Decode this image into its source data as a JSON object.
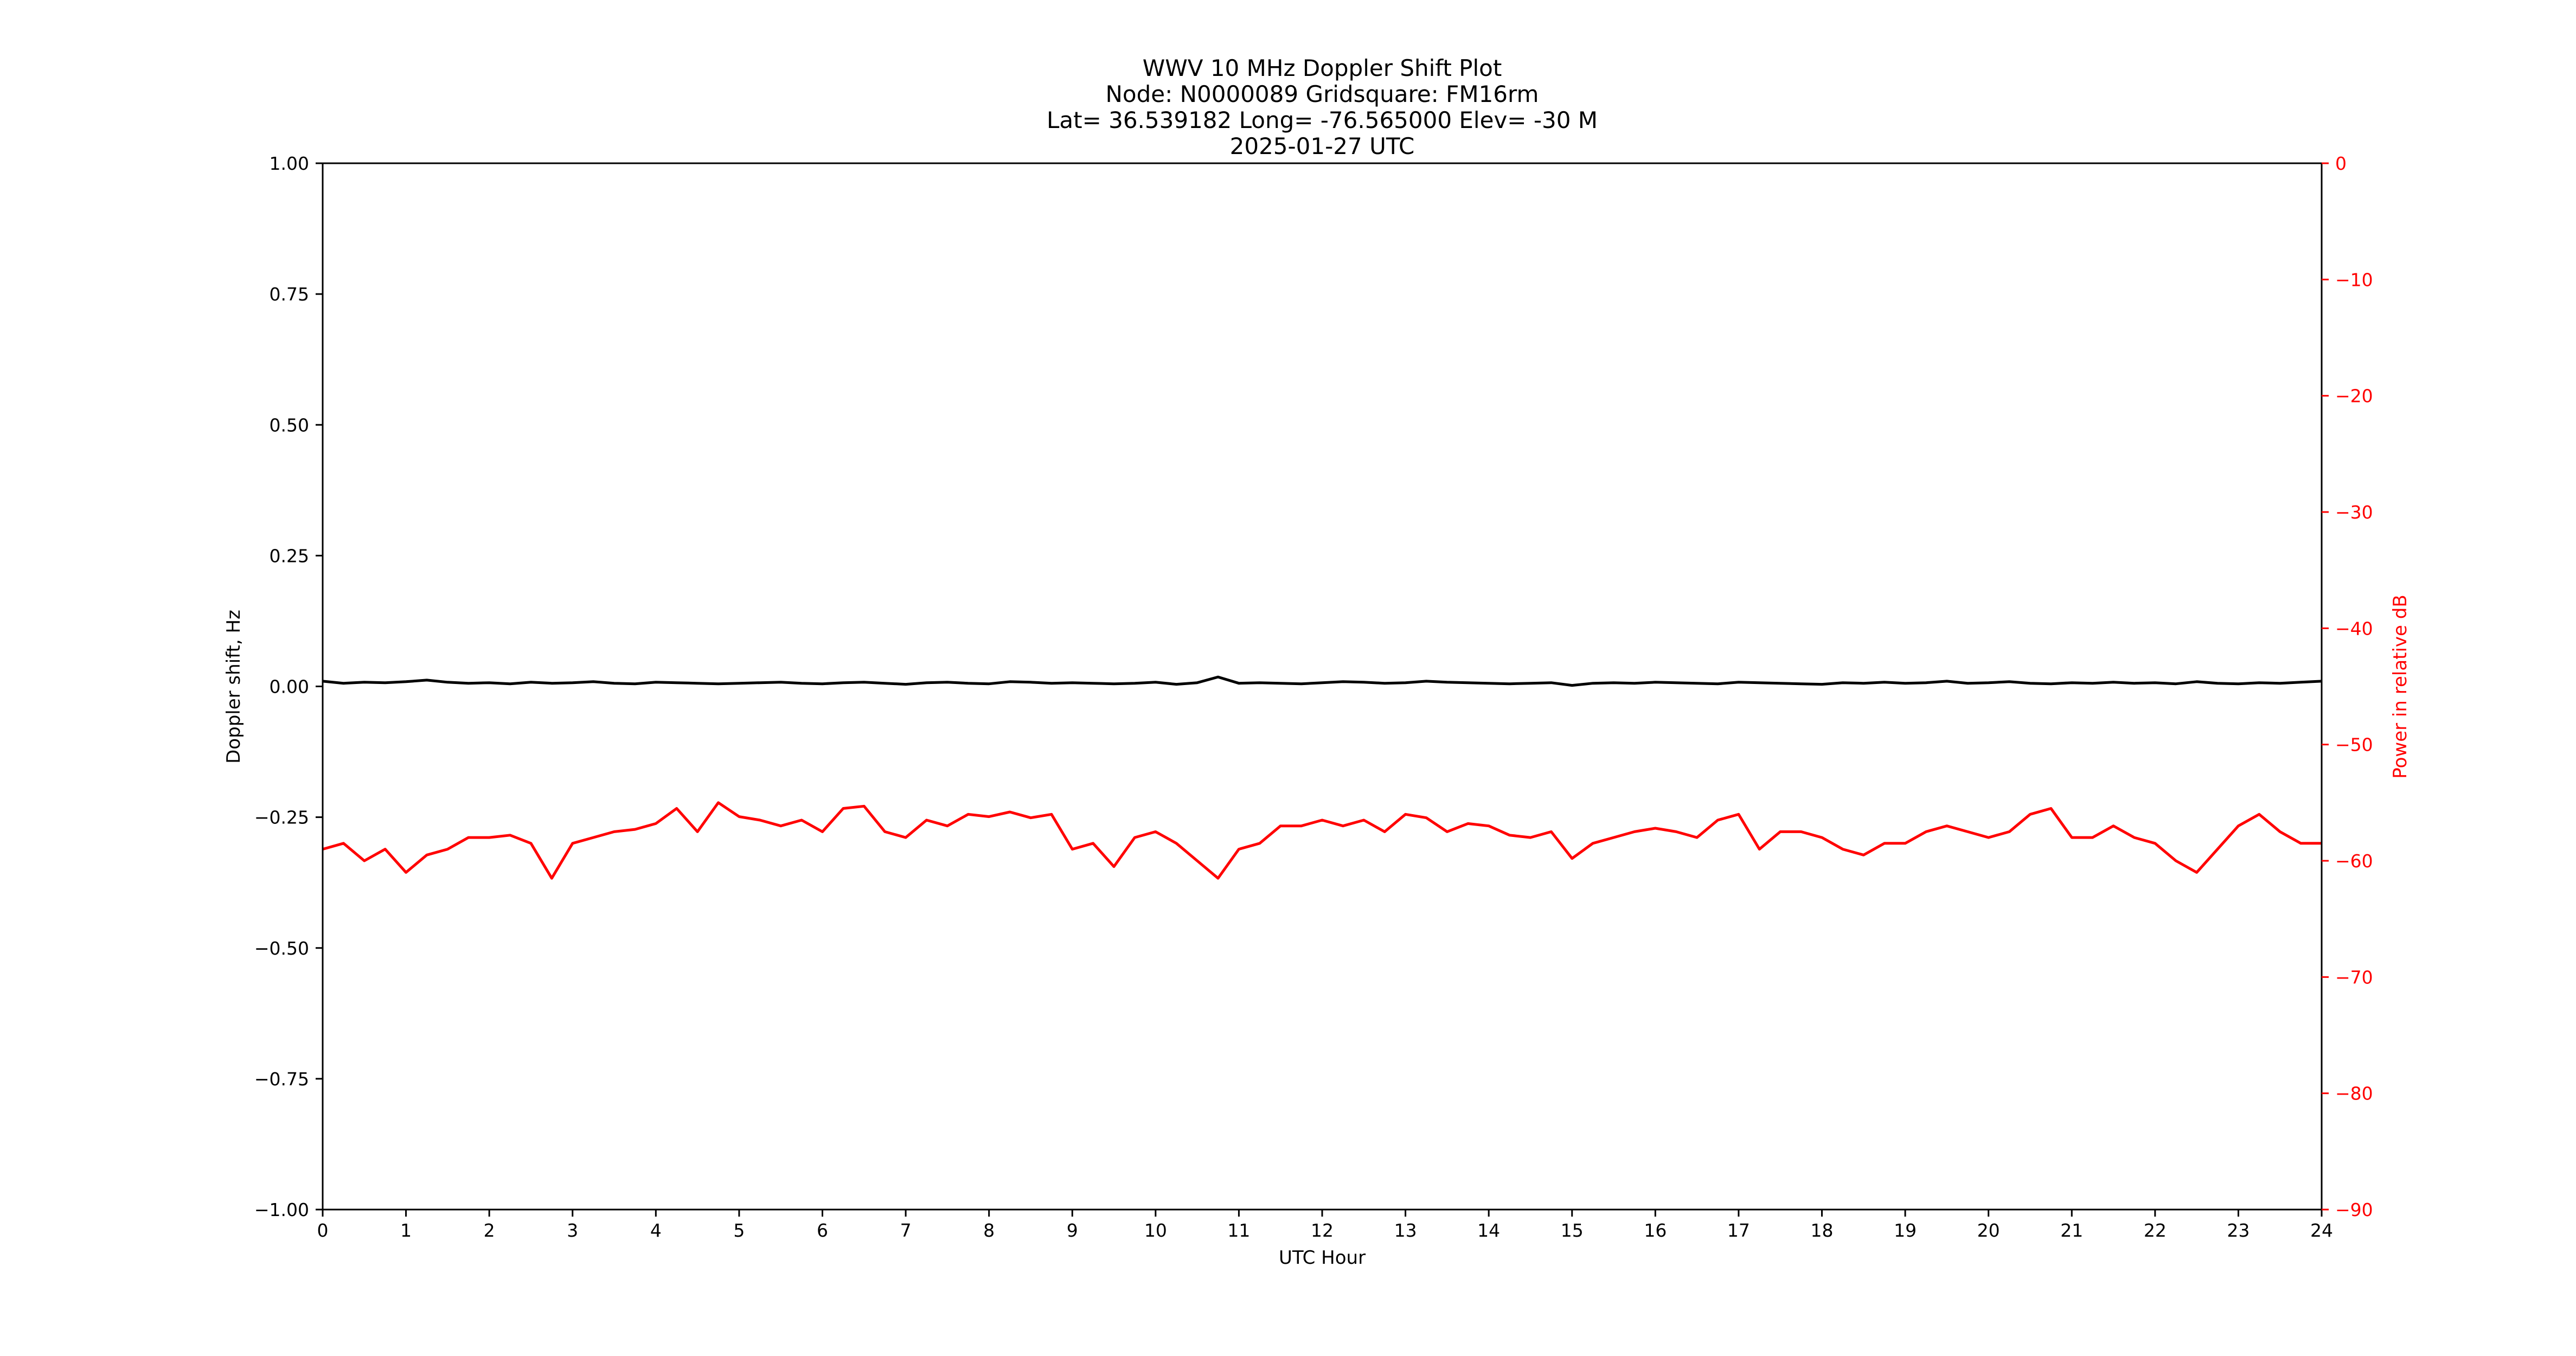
{
  "chart_data": {
    "type": "line",
    "title_lines": [
      "WWV 10 MHz Doppler Shift Plot",
      "Node:  N0000089     Gridsquare:  FM16rm",
      "Lat= 36.539182    Long= -76.565000    Elev= -30 M",
      "2025-01-27  UTC"
    ],
    "xlabel": "UTC Hour",
    "ylabel": "Doppler shift, Hz",
    "y2label": "Power in relative dB",
    "xlim": [
      0,
      24
    ],
    "ylim": [
      -1.0,
      1.0
    ],
    "y2lim": [
      -90,
      0
    ],
    "x_ticks": [
      "0",
      "1",
      "2",
      "3",
      "4",
      "5",
      "6",
      "7",
      "8",
      "9",
      "10",
      "11",
      "12",
      "13",
      "14",
      "15",
      "16",
      "17",
      "18",
      "19",
      "20",
      "21",
      "22",
      "23",
      "24"
    ],
    "y_ticks": [
      "1.00",
      "0.75",
      "0.50",
      "0.25",
      "0.00",
      "−0.25",
      "−0.50",
      "−0.75",
      "−1.00"
    ],
    "y_tick_values": [
      1.0,
      0.75,
      0.5,
      0.25,
      0.0,
      -0.25,
      -0.5,
      -0.75,
      -1.0
    ],
    "y2_ticks": [
      "0",
      "−10",
      "−20",
      "−30",
      "−40",
      "−50",
      "−60",
      "−70",
      "−80",
      "−90"
    ],
    "y2_tick_values": [
      0,
      -10,
      -20,
      -30,
      -40,
      -50,
      -60,
      -70,
      -80,
      -90
    ],
    "grid": false,
    "colors": {
      "doppler": "#000000",
      "power": "#ff0000",
      "axis2": "#ff0000"
    },
    "series": [
      {
        "axis": "left",
        "x": [
          0,
          0.25,
          0.5,
          0.75,
          1,
          1.25,
          1.5,
          1.75,
          2,
          2.25,
          2.5,
          2.75,
          3,
          3.25,
          3.5,
          3.75,
          4,
          4.25,
          4.5,
          4.75,
          5,
          5.25,
          5.5,
          5.75,
          6,
          6.25,
          6.5,
          6.75,
          7,
          7.25,
          7.5,
          7.75,
          8,
          8.25,
          8.5,
          8.75,
          9,
          9.25,
          9.5,
          9.75,
          10,
          10.25,
          10.5,
          10.75,
          11,
          11.25,
          11.5,
          11.75,
          12,
          12.25,
          12.5,
          12.75,
          13,
          13.25,
          13.5,
          13.75,
          14,
          14.25,
          14.5,
          14.75,
          15,
          15.25,
          15.5,
          15.75,
          16,
          16.25,
          16.5,
          16.75,
          17,
          17.25,
          17.5,
          17.75,
          18,
          18.25,
          18.5,
          18.75,
          19,
          19.25,
          19.5,
          19.75,
          20,
          20.25,
          20.5,
          20.75,
          21,
          21.25,
          21.5,
          21.75,
          22,
          22.25,
          22.5,
          22.75,
          23,
          23.25,
          23.5,
          23.75,
          24
        ],
        "values": [
          0.01,
          0.006,
          0.008,
          0.007,
          0.009,
          0.012,
          0.008,
          0.006,
          0.007,
          0.005,
          0.008,
          0.006,
          0.007,
          0.009,
          0.006,
          0.005,
          0.008,
          0.007,
          0.006,
          0.005,
          0.006,
          0.007,
          0.008,
          0.006,
          0.005,
          0.007,
          0.008,
          0.006,
          0.004,
          0.007,
          0.008,
          0.006,
          0.005,
          0.009,
          0.008,
          0.006,
          0.007,
          0.006,
          0.005,
          0.006,
          0.008,
          0.004,
          0.007,
          0.018,
          0.006,
          0.007,
          0.006,
          0.005,
          0.007,
          0.009,
          0.008,
          0.006,
          0.007,
          0.01,
          0.008,
          0.007,
          0.006,
          0.005,
          0.006,
          0.007,
          0.002,
          0.006,
          0.007,
          0.006,
          0.008,
          0.007,
          0.006,
          0.005,
          0.008,
          0.007,
          0.006,
          0.005,
          0.004,
          0.007,
          0.006,
          0.008,
          0.006,
          0.007,
          0.01,
          0.006,
          0.007,
          0.009,
          0.006,
          0.005,
          0.007,
          0.006,
          0.008,
          0.006,
          0.007,
          0.005,
          0.009,
          0.006,
          0.005,
          0.007,
          0.006,
          0.008,
          0.01
        ]
      },
      {
        "axis": "right",
        "x": [
          0,
          0.25,
          0.5,
          0.75,
          1,
          1.25,
          1.5,
          1.75,
          2,
          2.25,
          2.5,
          2.75,
          3,
          3.25,
          3.5,
          3.75,
          4,
          4.25,
          4.5,
          4.75,
          5,
          5.25,
          5.5,
          5.75,
          6,
          6.25,
          6.5,
          6.75,
          7,
          7.25,
          7.5,
          7.75,
          8,
          8.25,
          8.5,
          8.75,
          9,
          9.25,
          9.5,
          9.75,
          10,
          10.25,
          10.5,
          10.75,
          11,
          11.25,
          11.5,
          11.75,
          12,
          12.25,
          12.5,
          12.75,
          13,
          13.25,
          13.5,
          13.75,
          14,
          14.25,
          14.5,
          14.75,
          15,
          15.25,
          15.5,
          15.75,
          16,
          16.25,
          16.5,
          16.75,
          17,
          17.25,
          17.5,
          17.75,
          18,
          18.25,
          18.5,
          18.75,
          19,
          19.25,
          19.5,
          19.75,
          20,
          20.25,
          20.5,
          20.75,
          21,
          21.25,
          21.5,
          21.75,
          22,
          22.25,
          22.5,
          22.75,
          23,
          23.25,
          23.5,
          23.75,
          24
        ],
        "values": [
          -59.0,
          -58.5,
          -60.0,
          -59.0,
          -61.0,
          -59.5,
          -59.0,
          -58.0,
          -58.0,
          -57.8,
          -58.5,
          -61.5,
          -58.5,
          -58.0,
          -57.5,
          -57.3,
          -56.8,
          -55.5,
          -57.5,
          -55.0,
          -56.2,
          -56.5,
          -57.0,
          -56.5,
          -57.5,
          -55.5,
          -55.3,
          -57.5,
          -58.0,
          -56.5,
          -57.0,
          -56.0,
          -56.2,
          -55.8,
          -56.3,
          -56.0,
          -59.0,
          -58.5,
          -60.5,
          -58.0,
          -57.5,
          -58.5,
          -60.0,
          -61.5,
          -59.0,
          -58.5,
          -57.0,
          -57.0,
          -56.5,
          -57.0,
          -56.5,
          -57.5,
          -56.0,
          -56.3,
          -57.5,
          -56.8,
          -57.0,
          -57.8,
          -58.0,
          -57.5,
          -59.8,
          -58.5,
          -58.0,
          -57.5,
          -57.2,
          -57.5,
          -58.0,
          -56.5,
          -56.0,
          -59.0,
          -57.5,
          -57.5,
          -58.0,
          -59.0,
          -59.5,
          -58.5,
          -58.5,
          -57.5,
          -57.0,
          -57.5,
          -58.0,
          -57.5,
          -56.0,
          -55.5,
          -58.0,
          -58.0,
          -57.0,
          -58.0,
          -58.5,
          -60.0,
          -61.0,
          -59.0,
          -57.0,
          -56.0,
          -57.5,
          -58.5,
          -58.5
        ]
      }
    ]
  }
}
